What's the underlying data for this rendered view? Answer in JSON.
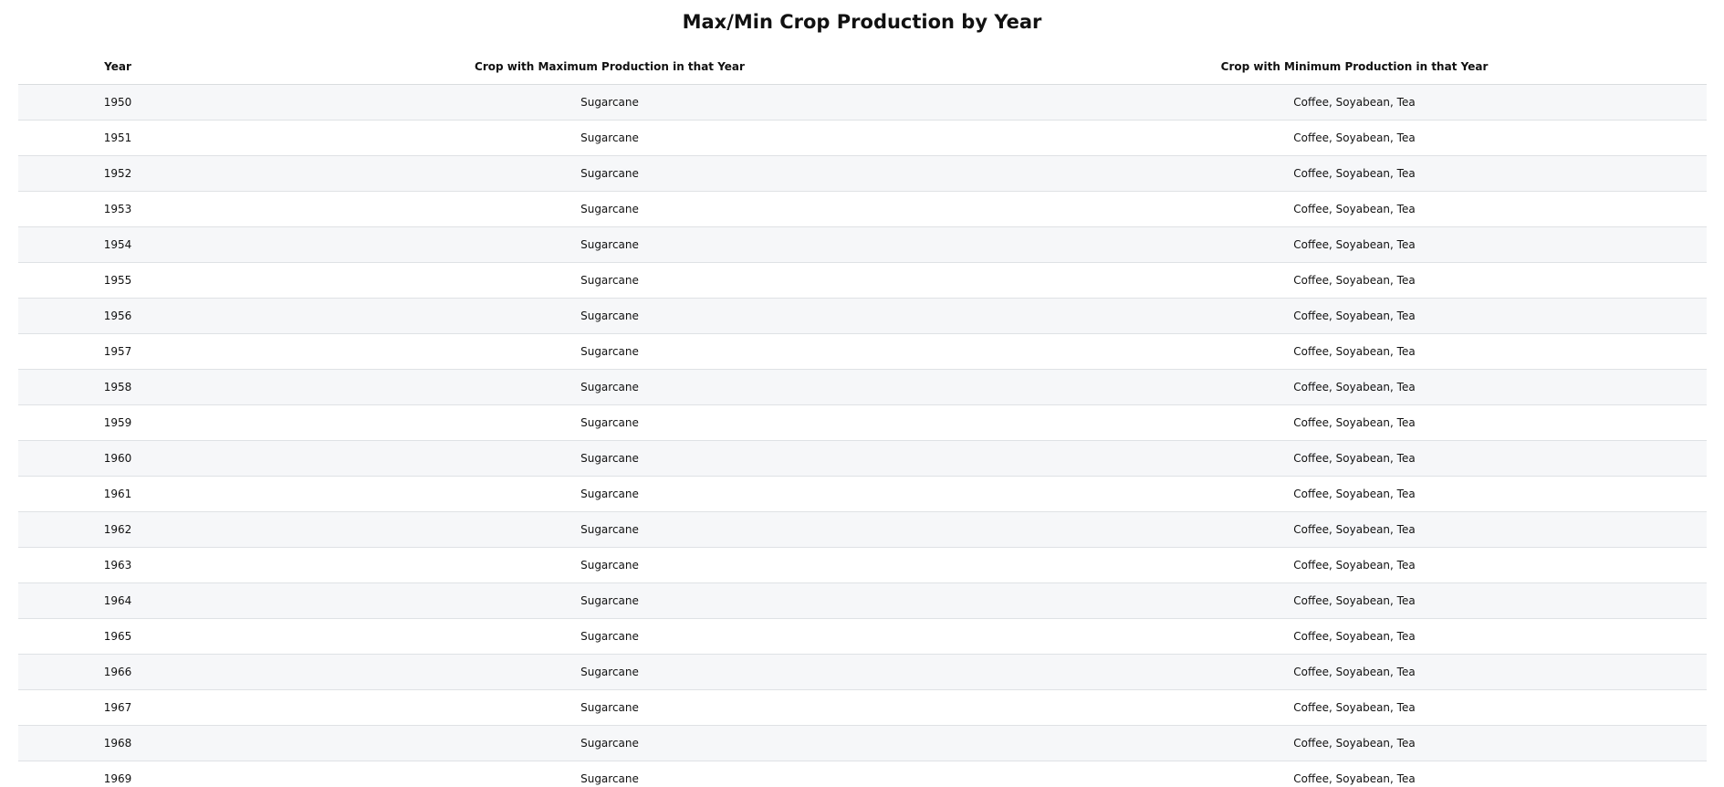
{
  "title": "Max/Min Crop Production by Year",
  "table": {
    "headers": {
      "year": "Year",
      "max": "Crop with Maximum Production in that Year",
      "min": "Crop with Minimum Production in that Year"
    },
    "rows": [
      {
        "year": "1950",
        "max": "Sugarcane",
        "min": "Coffee, Soyabean, Tea"
      },
      {
        "year": "1951",
        "max": "Sugarcane",
        "min": "Coffee, Soyabean, Tea"
      },
      {
        "year": "1952",
        "max": "Sugarcane",
        "min": "Coffee, Soyabean, Tea"
      },
      {
        "year": "1953",
        "max": "Sugarcane",
        "min": "Coffee, Soyabean, Tea"
      },
      {
        "year": "1954",
        "max": "Sugarcane",
        "min": "Coffee, Soyabean, Tea"
      },
      {
        "year": "1955",
        "max": "Sugarcane",
        "min": "Coffee, Soyabean, Tea"
      },
      {
        "year": "1956",
        "max": "Sugarcane",
        "min": "Coffee, Soyabean, Tea"
      },
      {
        "year": "1957",
        "max": "Sugarcane",
        "min": "Coffee, Soyabean, Tea"
      },
      {
        "year": "1958",
        "max": "Sugarcane",
        "min": "Coffee, Soyabean, Tea"
      },
      {
        "year": "1959",
        "max": "Sugarcane",
        "min": "Coffee, Soyabean, Tea"
      },
      {
        "year": "1960",
        "max": "Sugarcane",
        "min": "Coffee, Soyabean, Tea"
      },
      {
        "year": "1961",
        "max": "Sugarcane",
        "min": "Coffee, Soyabean, Tea"
      },
      {
        "year": "1962",
        "max": "Sugarcane",
        "min": "Coffee, Soyabean, Tea"
      },
      {
        "year": "1963",
        "max": "Sugarcane",
        "min": "Coffee, Soyabean, Tea"
      },
      {
        "year": "1964",
        "max": "Sugarcane",
        "min": "Coffee, Soyabean, Tea"
      },
      {
        "year": "1965",
        "max": "Sugarcane",
        "min": "Coffee, Soyabean, Tea"
      },
      {
        "year": "1966",
        "max": "Sugarcane",
        "min": "Coffee, Soyabean, Tea"
      },
      {
        "year": "1967",
        "max": "Sugarcane",
        "min": "Coffee, Soyabean, Tea"
      },
      {
        "year": "1968",
        "max": "Sugarcane",
        "min": "Coffee, Soyabean, Tea"
      },
      {
        "year": "1969",
        "max": "Sugarcane",
        "min": "Coffee, Soyabean, Tea"
      }
    ]
  }
}
